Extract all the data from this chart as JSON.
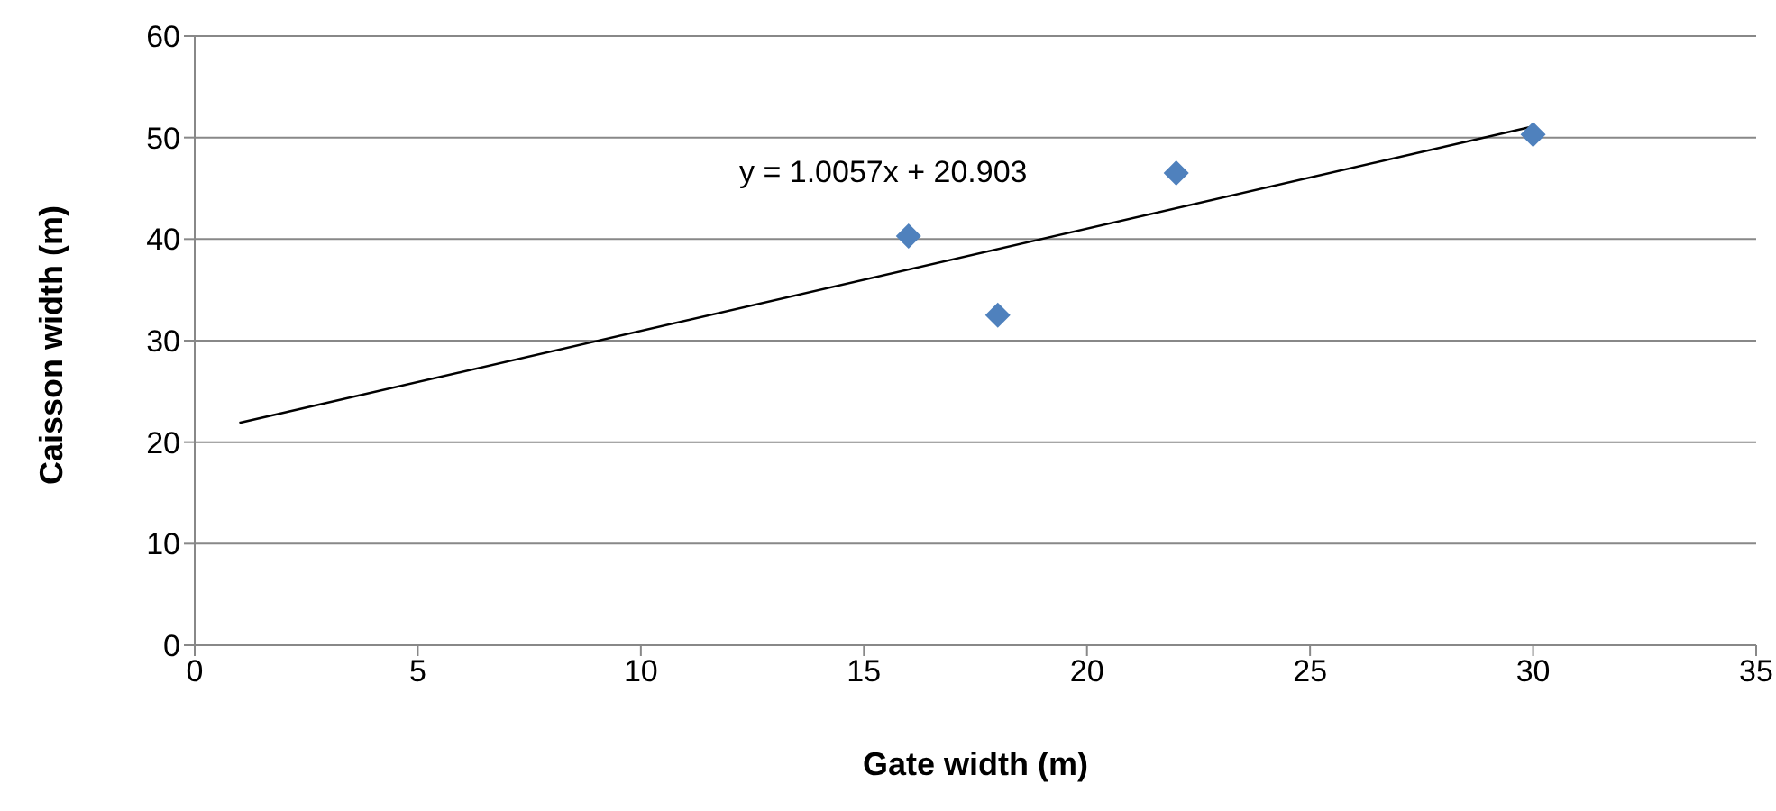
{
  "chart_data": {
    "type": "scatter",
    "xlabel": "Gate width (m)",
    "ylabel": "Caisson width (m)",
    "x": [
      16,
      18,
      22,
      30
    ],
    "series": [
      {
        "color": "#4f81bd",
        "values": [
          40.3,
          32.5,
          46.5,
          50.3
        ],
        "marker": "diamond"
      },
      {
        "type": "line",
        "color": "#000000",
        "x": [
          1,
          30
        ],
        "values": [
          21.9,
          51.1
        ],
        "marker": "none"
      }
    ],
    "annotations": [
      "y = 1.0057x + 20.903"
    ],
    "xlim": [
      0,
      35
    ],
    "xticks": [
      0,
      5,
      10,
      15,
      20,
      25,
      30,
      35
    ],
    "ylim": [
      0,
      60
    ],
    "yticks": [
      0,
      10,
      20,
      30,
      40,
      50,
      60
    ],
    "grid": "y",
    "legend": false
  }
}
